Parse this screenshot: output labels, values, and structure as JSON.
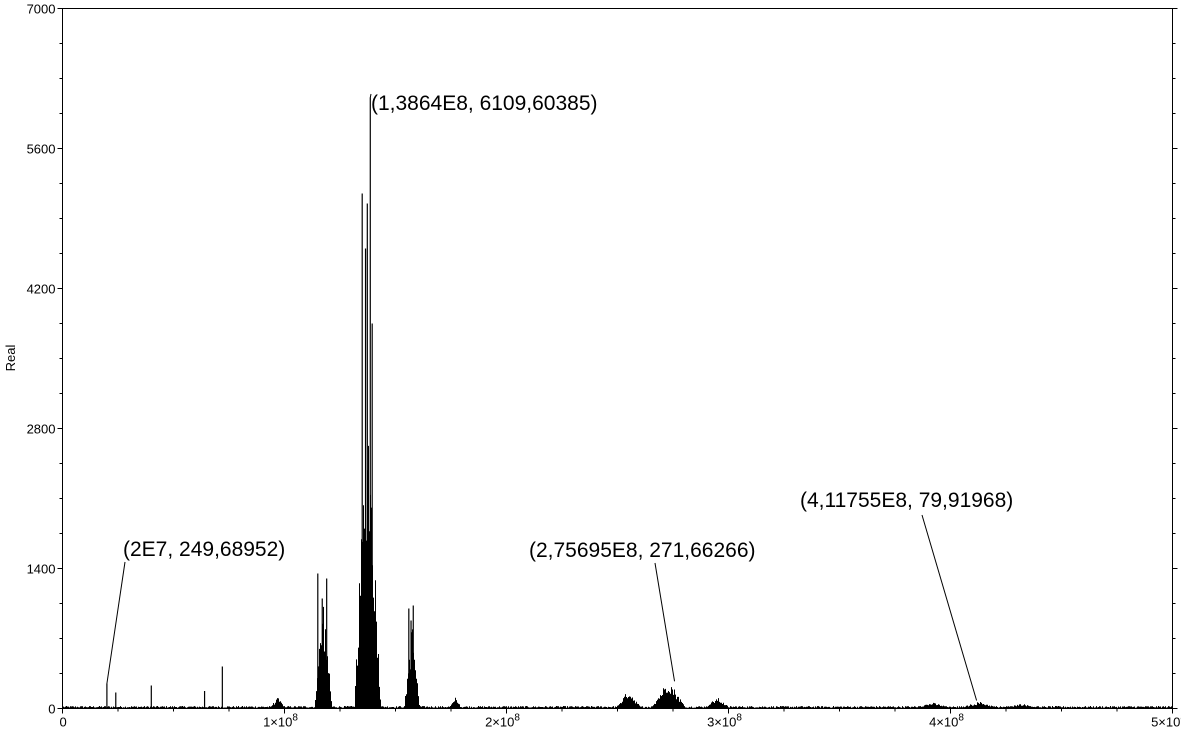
{
  "chart_data": {
    "type": "bar",
    "title": "",
    "xlabel": "",
    "ylabel": "Real",
    "xlim": [
      0,
      500000000
    ],
    "ylim": [
      0,
      7000
    ],
    "y_ticks": [
      0,
      1400,
      2800,
      4200,
      5600,
      7000
    ],
    "y_tick_labels": [
      "0",
      "1400",
      "2800",
      "4200",
      "5600",
      "7000"
    ],
    "x_ticks": [
      0,
      100000000,
      200000000,
      300000000,
      400000000,
      500000000
    ],
    "x_tick_labels": [
      {
        "base": "0",
        "exp": ""
      },
      {
        "base": "1×10",
        "exp": "8"
      },
      {
        "base": "2×10",
        "exp": "8"
      },
      {
        "base": "3×10",
        "exp": "8"
      },
      {
        "base": "4×10",
        "exp": "8"
      },
      {
        "base": "5×10",
        "exp": "8"
      }
    ],
    "grid": false,
    "bar_color": "#000000",
    "baseline_noise": 25,
    "spikes": [
      {
        "x": 20000000,
        "y": 249.68952
      },
      {
        "x": 24000000,
        "y": 160
      },
      {
        "x": 40000000,
        "y": 230
      },
      {
        "x": 64000000,
        "y": 175
      },
      {
        "x": 72000000,
        "y": 420
      },
      {
        "x": 115000000,
        "y": 1350
      },
      {
        "x": 117000000,
        "y": 1100
      },
      {
        "x": 119000000,
        "y": 1300
      },
      {
        "x": 135000000,
        "y": 5150
      },
      {
        "x": 136500000,
        "y": 4600
      },
      {
        "x": 137300000,
        "y": 5050
      },
      {
        "x": 138640000,
        "y": 6109.60385
      },
      {
        "x": 139500000,
        "y": 3850
      },
      {
        "x": 156000000,
        "y": 1000
      },
      {
        "x": 157000000,
        "y": 880
      },
      {
        "x": 158000000,
        "y": 1030
      }
    ],
    "clusters": [
      {
        "center": 97000000,
        "width": 4000000,
        "height": 110
      },
      {
        "center": 117500000,
        "width": 4000000,
        "height": 1150
      },
      {
        "center": 137500000,
        "width": 6000000,
        "height": 3300
      },
      {
        "center": 157500000,
        "width": 3500000,
        "height": 880
      },
      {
        "center": 177000000,
        "width": 3000000,
        "height": 110
      },
      {
        "center": 255000000,
        "width": 6000000,
        "height": 190
      },
      {
        "center": 273000000,
        "width": 8000000,
        "height": 300
      },
      {
        "center": 295000000,
        "width": 6000000,
        "height": 115
      },
      {
        "center": 392000000,
        "width": 10000000,
        "height": 60
      },
      {
        "center": 413000000,
        "width": 10000000,
        "height": 70
      },
      {
        "center": 432000000,
        "width": 10000000,
        "height": 50
      }
    ],
    "annotations": [
      {
        "text": "(2E7, 249,68952)",
        "x": 20000000,
        "y": 249.68952
      },
      {
        "text": "(1,3864E8, 6109,60385)",
        "x": 138640000,
        "y": 6109.60385
      },
      {
        "text": "(2,75695E8, 271,66266)",
        "x": 275695000,
        "y": 271.66266
      },
      {
        "text": "(4,11755E8, 79,91968)",
        "x": 411755000,
        "y": 79.91968
      }
    ]
  }
}
